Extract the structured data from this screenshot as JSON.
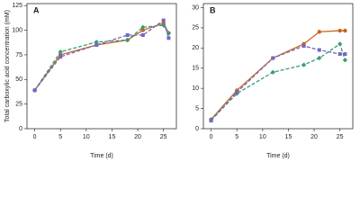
{
  "chart_data": [
    {
      "type": "line",
      "title": "A",
      "ylabel": "Total carboxylic acid concentration (mM)",
      "xlabel": "Time (d)",
      "x": [
        0,
        5,
        12,
        18,
        21,
        25,
        26
      ],
      "xlim": [
        -1.5,
        27.5
      ],
      "xticks": [
        0,
        5,
        10,
        15,
        20,
        25
      ],
      "ylim": [
        0,
        127
      ],
      "yticks": [
        0,
        25,
        50,
        75,
        100,
        125
      ],
      "series": [
        {
          "color": "#c8641e",
          "dash": false,
          "marker": "circle",
          "values": [
            39,
            75,
            85,
            90,
            100,
            107,
            97
          ]
        },
        {
          "color": "#3a9a78",
          "dash": true,
          "marker": "diamond",
          "values": [
            39,
            78,
            88,
            90,
            103,
            105,
            97
          ]
        },
        {
          "color": "#7467c4",
          "dash": true,
          "marker": "square",
          "values": [
            39,
            73,
            85,
            95,
            95,
            110,
            92
          ]
        }
      ]
    },
    {
      "type": "line",
      "title": "B",
      "xlabel": "Time (d)",
      "x": [
        0,
        5,
        12,
        18,
        21,
        25,
        26
      ],
      "xlim": [
        -1.5,
        27.5
      ],
      "xticks": [
        0,
        5,
        10,
        15,
        20,
        25
      ],
      "ylim": [
        0,
        31
      ],
      "yticks": [
        0,
        5,
        10,
        15,
        20,
        25,
        30
      ],
      "series": [
        {
          "color": "#c8641e",
          "dash": false,
          "marker": "circle",
          "values": [
            2.3,
            9.5,
            17.5,
            21,
            24,
            24.3,
            24.3
          ]
        },
        {
          "color": "#3a9a78",
          "dash": true,
          "marker": "diamond",
          "values": [
            2.2,
            8.7,
            14,
            15.8,
            17.5,
            21,
            17
          ]
        },
        {
          "color": "#7467c4",
          "dash": true,
          "marker": "square",
          "values": [
            2,
            9,
            17.5,
            20.5,
            19.5,
            18.5,
            18.5
          ]
        }
      ]
    }
  ]
}
